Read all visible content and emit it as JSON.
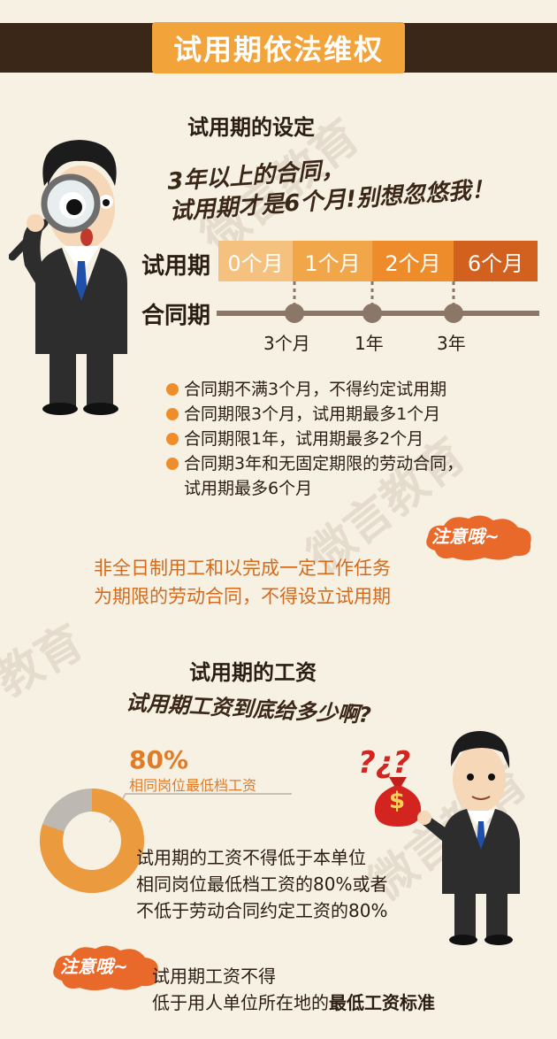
{
  "header": {
    "title": "试用期依法维权"
  },
  "watermarks": [
    "微言教育",
    "微言教育",
    "教育",
    "微言教育"
  ],
  "section1": {
    "title": "试用期的设定",
    "speech": [
      "3年以上的合同，",
      "试用期才是6个月!别想忽悠我！"
    ],
    "probation_label": "试用期",
    "contract_label": "合同期",
    "segments": [
      "0个月",
      "1个月",
      "2个月",
      "6个月"
    ],
    "segment_colors": [
      "#f4c27e",
      "#f2a64a",
      "#ee8b2a",
      "#d2601e"
    ],
    "ticks": [
      "3个月",
      "1年",
      "3年"
    ],
    "bullets": [
      "合同期不满3个月，不得约定试用期",
      "合同期限3个月，试用期最多1个月",
      "合同期限1年，试用期最多2个月",
      "合同期3年和无固定期限的劳动合同，",
      "试用期最多6个月"
    ],
    "notice_label": "注意哦~",
    "note": [
      "非全日制用工和以完成一定工作任务",
      "为期限的劳动合同，不得设立试用期"
    ]
  },
  "section2": {
    "title": "试用期的工资",
    "speech": "试用期工资到底给多少啊?",
    "percent": "80%",
    "percent_caption": "相同岗位最低档工资",
    "donut_fraction": 0.8,
    "donut_colors": [
      "#ec9a3e",
      "#bdb8b2"
    ],
    "body": [
      "试用期的工资不得低于本单位",
      "相同岗位最低档工资的80%或者",
      "不低于劳动合同约定工资的80%"
    ],
    "bag_symbol": "$",
    "question_marks": "?¿?",
    "notice_label": "注意哦~",
    "note_line1": "试用期工资不得",
    "note_line2_prefix": "低于用人单位所在地的",
    "note_line2_bold": "最低工资标准"
  }
}
